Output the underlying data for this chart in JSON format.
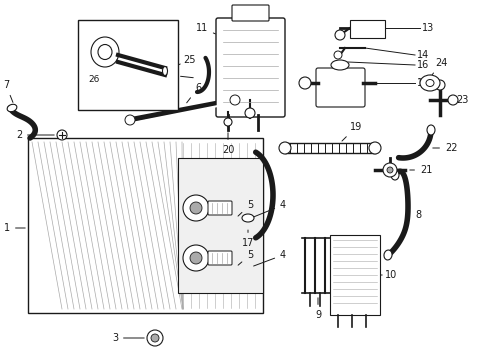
{
  "bg_color": "#ffffff",
  "lc": "#1a1a1a",
  "gc": "#666666",
  "lgc": "#aaaaaa",
  "fig_w": 4.9,
  "fig_h": 3.6,
  "dpi": 100
}
